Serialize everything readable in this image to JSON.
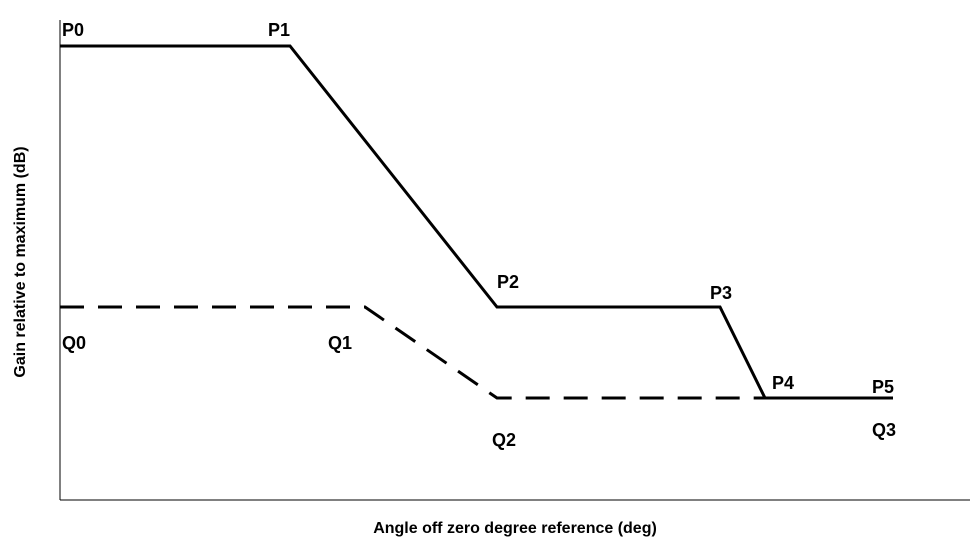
{
  "x_axis_label": "Angle off zero degree reference (deg)",
  "y_axis_label": "Gain relative to maximum (dB)",
  "upper_curve_labels": [
    "P0",
    "P1",
    "P2",
    "P3",
    "P4",
    "P5"
  ],
  "lower_curve_labels": [
    "Q0",
    "Q1",
    "Q2",
    "Q3"
  ]
}
